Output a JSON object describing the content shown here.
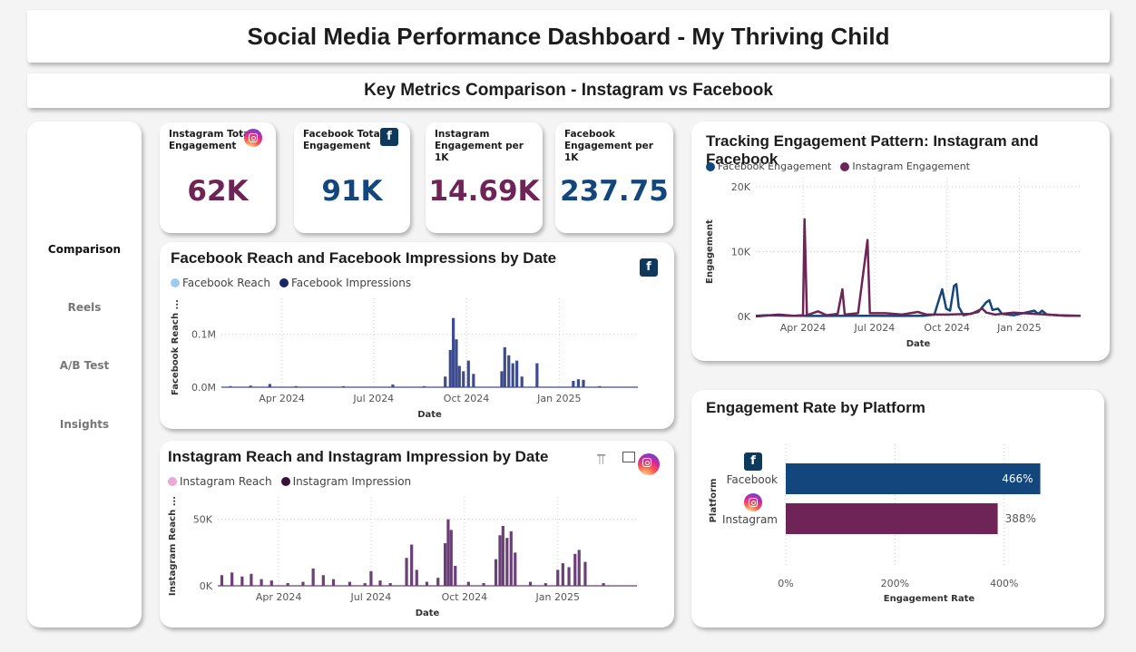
{
  "header": {
    "title": "Social Media Performance Dashboard - My Thriving Child",
    "subtitle": "Key Metrics Comparison - Instagram vs Facebook"
  },
  "nav": {
    "items": [
      {
        "label": "Comparison",
        "active": true
      },
      {
        "label": "Reels",
        "active": false
      },
      {
        "label": "A/B Test",
        "active": false
      },
      {
        "label": "Insights",
        "active": false
      }
    ]
  },
  "kpis": [
    {
      "label": "Instagram Total Engagement",
      "value": "62K",
      "icon": "instagram-icon"
    },
    {
      "label": "Facebook Total Engagement",
      "value": "91K",
      "icon": "facebook-icon"
    },
    {
      "label": "Instagram Engagement per 1K",
      "value": "14.69K"
    },
    {
      "label": "Facebook Engagement per 1K",
      "value": "237.75"
    }
  ],
  "colors": {
    "facebook": "#13467d",
    "instagram": "#6e2456",
    "fb_reach": "#9ecbf0",
    "fb_impressions": "#1a2466",
    "ig_reach": "#e9a9d4",
    "ig_impression": "#3a0f3a"
  },
  "fb_chart": {
    "title": "Facebook Reach and Facebook Impressions by Date",
    "legend": [
      "Facebook Reach",
      "Facebook Impressions"
    ],
    "ylabel": "Facebook Reach ...",
    "xlabel": "Date",
    "yticks": [
      "0.1M",
      "0.0M"
    ],
    "xticks": [
      "Apr 2024",
      "Jul 2024",
      "Oct 2024",
      "Jan 2025"
    ]
  },
  "ig_chart": {
    "title": "Instagram Reach and Instagram Impression by Date",
    "legend": [
      "Instagram Reach",
      "Instagram Impression"
    ],
    "ylabel": "Instagram Reach ...",
    "xlabel": "Date",
    "yticks": [
      "50K",
      "0K"
    ],
    "xticks": [
      "Apr 2024",
      "Jul 2024",
      "Oct 2024",
      "Jan 2025"
    ]
  },
  "eng_chart": {
    "title": "Tracking Engagement Pattern: Instagram and Facebook",
    "legend": [
      "Facebook Engagement",
      "Instagram Engagement"
    ],
    "ylabel": "Engagement",
    "xlabel": "Date",
    "yticks": [
      "20K",
      "10K",
      "0K"
    ],
    "xticks": [
      "Apr 2024",
      "Jul 2024",
      "Oct 2024",
      "Jan 2025"
    ]
  },
  "rate_chart": {
    "title": "Engagement Rate by Platform",
    "ylabel": "Platform",
    "xlabel": "Engagement Rate",
    "xticks": [
      "0%",
      "200%",
      "400%"
    ],
    "bars": [
      {
        "label": "Facebook",
        "value_label": "466%"
      },
      {
        "label": "Instagram",
        "value_label": "388%"
      }
    ]
  },
  "chart_data": [
    {
      "type": "bar",
      "title": "Facebook Reach and Facebook Impressions by Date",
      "xlabel": "Date",
      "ylabel": "Facebook Reach ...",
      "ylim": [
        0,
        0.15
      ],
      "y_unit": "M",
      "x_range": [
        "2024-02-01",
        "2025-03-20"
      ],
      "series": [
        {
          "name": "Facebook Impressions",
          "points": [
            [
              "2024-02-10",
              0.002
            ],
            [
              "2024-03-01",
              0.003
            ],
            [
              "2024-03-20",
              0.006
            ],
            [
              "2024-04-15",
              0.002
            ],
            [
              "2024-06-01",
              0.002
            ],
            [
              "2024-07-20",
              0.005
            ],
            [
              "2024-08-20",
              0.002
            ],
            [
              "2024-09-10",
              0.02
            ],
            [
              "2024-09-15",
              0.07
            ],
            [
              "2024-09-18",
              0.13
            ],
            [
              "2024-09-21",
              0.09
            ],
            [
              "2024-09-24",
              0.04
            ],
            [
              "2024-09-28",
              0.03
            ],
            [
              "2024-10-03",
              0.05
            ],
            [
              "2024-10-08",
              0.025
            ],
            [
              "2024-11-05",
              0.03
            ],
            [
              "2024-11-08",
              0.075
            ],
            [
              "2024-11-12",
              0.06
            ],
            [
              "2024-11-16",
              0.045
            ],
            [
              "2024-11-20",
              0.05
            ],
            [
              "2024-11-25",
              0.02
            ],
            [
              "2024-12-10",
              0.045
            ],
            [
              "2025-01-15",
              0.012
            ],
            [
              "2025-01-20",
              0.015
            ],
            [
              "2025-01-25",
              0.014
            ],
            [
              "2025-02-10",
              0.002
            ]
          ]
        },
        {
          "name": "Facebook Reach",
          "points": []
        }
      ]
    },
    {
      "type": "bar",
      "title": "Instagram Reach and Instagram Impression by Date",
      "xlabel": "Date",
      "ylabel": "Instagram Reach ...",
      "ylim": [
        0,
        60000
      ],
      "x_range": [
        "2024-02-01",
        "2025-03-20"
      ],
      "series": [
        {
          "name": "Instagram Impression",
          "points": [
            [
              "2024-02-05",
              8000
            ],
            [
              "2024-02-15",
              10000
            ],
            [
              "2024-02-25",
              7000
            ],
            [
              "2024-03-05",
              9000
            ],
            [
              "2024-03-15",
              5000
            ],
            [
              "2024-03-25",
              4000
            ],
            [
              "2024-04-10",
              2000
            ],
            [
              "2024-04-25",
              3000
            ],
            [
              "2024-05-05",
              13000
            ],
            [
              "2024-05-15",
              8000
            ],
            [
              "2024-05-25",
              5000
            ],
            [
              "2024-06-10",
              3000
            ],
            [
              "2024-06-25",
              2000
            ],
            [
              "2024-07-01",
              11000
            ],
            [
              "2024-07-10",
              4000
            ],
            [
              "2024-07-20",
              2000
            ],
            [
              "2024-08-05",
              21000
            ],
            [
              "2024-08-10",
              31000
            ],
            [
              "2024-08-15",
              12000
            ],
            [
              "2024-08-25",
              3000
            ],
            [
              "2024-09-05",
              6000
            ],
            [
              "2024-09-12",
              32000
            ],
            [
              "2024-09-15",
              50000
            ],
            [
              "2024-09-18",
              42000
            ],
            [
              "2024-09-22",
              15000
            ],
            [
              "2024-10-05",
              3000
            ],
            [
              "2024-10-20",
              2000
            ],
            [
              "2024-11-01",
              20000
            ],
            [
              "2024-11-05",
              38000
            ],
            [
              "2024-11-08",
              45000
            ],
            [
              "2024-11-12",
              36000
            ],
            [
              "2024-11-16",
              41000
            ],
            [
              "2024-11-20",
              25000
            ],
            [
              "2024-12-05",
              3000
            ],
            [
              "2024-12-20",
              2000
            ],
            [
              "2025-01-01",
              12000
            ],
            [
              "2025-01-06",
              17000
            ],
            [
              "2025-01-12",
              14000
            ],
            [
              "2025-01-18",
              24000
            ],
            [
              "2025-01-22",
              27000
            ],
            [
              "2025-01-28",
              18000
            ],
            [
              "2025-02-15",
              2000
            ]
          ]
        },
        {
          "name": "Instagram Reach",
          "points": []
        }
      ]
    },
    {
      "type": "line",
      "title": "Tracking Engagement Pattern: Instagram and Facebook",
      "xlabel": "Date",
      "ylabel": "Engagement",
      "ylim": [
        0,
        20000
      ],
      "x_range": [
        "2024-02-01",
        "2025-03-20"
      ],
      "series": [
        {
          "name": "Facebook Engagement",
          "points": [
            [
              "2024-02-01",
              100
            ],
            [
              "2024-02-15",
              200
            ],
            [
              "2024-03-01",
              150
            ],
            [
              "2024-03-15",
              100
            ],
            [
              "2024-04-01",
              100
            ],
            [
              "2024-05-01",
              80
            ],
            [
              "2024-06-01",
              100
            ],
            [
              "2024-07-01",
              100
            ],
            [
              "2024-08-01",
              90
            ],
            [
              "2024-09-01",
              100
            ],
            [
              "2024-09-15",
              300
            ],
            [
              "2024-09-25",
              4200
            ],
            [
              "2024-09-30",
              1200
            ],
            [
              "2024-10-05",
              900
            ],
            [
              "2024-10-10",
              4700
            ],
            [
              "2024-10-13",
              5000
            ],
            [
              "2024-10-16",
              1500
            ],
            [
              "2024-10-22",
              200
            ],
            [
              "2024-11-10",
              700
            ],
            [
              "2024-11-20",
              2200
            ],
            [
              "2024-11-24",
              2500
            ],
            [
              "2024-11-28",
              1000
            ],
            [
              "2024-12-05",
              1200
            ],
            [
              "2024-12-10",
              400
            ],
            [
              "2024-12-25",
              200
            ],
            [
              "2025-01-20",
              900
            ],
            [
              "2025-01-25",
              400
            ],
            [
              "2025-01-30",
              900
            ],
            [
              "2025-02-05",
              300
            ],
            [
              "2025-03-01",
              100
            ],
            [
              "2025-03-20",
              100
            ]
          ]
        },
        {
          "name": "Instagram Engagement",
          "points": [
            [
              "2024-02-01",
              0
            ],
            [
              "2024-03-01",
              300
            ],
            [
              "2024-03-20",
              100
            ],
            [
              "2024-04-01",
              200
            ],
            [
              "2024-04-03",
              15000
            ],
            [
              "2024-04-06",
              200
            ],
            [
              "2024-04-20",
              800
            ],
            [
              "2024-05-01",
              200
            ],
            [
              "2024-05-15",
              400
            ],
            [
              "2024-05-21",
              4200
            ],
            [
              "2024-05-24",
              300
            ],
            [
              "2024-06-10",
              500
            ],
            [
              "2024-06-22",
              11800
            ],
            [
              "2024-06-25",
              500
            ],
            [
              "2024-07-15",
              500
            ],
            [
              "2024-08-05",
              300
            ],
            [
              "2024-08-25",
              700
            ],
            [
              "2024-09-05",
              300
            ],
            [
              "2024-10-01",
              300
            ],
            [
              "2024-11-01",
              400
            ],
            [
              "2024-11-15",
              1200
            ],
            [
              "2024-11-20",
              600
            ],
            [
              "2024-12-01",
              300
            ],
            [
              "2024-12-25",
              600
            ],
            [
              "2025-01-20",
              400
            ],
            [
              "2025-02-20",
              200
            ],
            [
              "2025-03-20",
              100
            ]
          ]
        }
      ]
    },
    {
      "type": "bar",
      "title": "Engagement Rate by Platform",
      "xlabel": "Engagement Rate",
      "ylabel": "Platform",
      "categories": [
        "Facebook",
        "Instagram"
      ],
      "values": [
        466,
        388
      ],
      "xlim": [
        0,
        500
      ],
      "unit": "%"
    }
  ]
}
